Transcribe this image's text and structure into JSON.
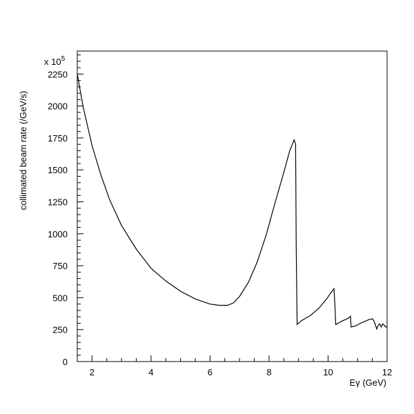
{
  "chart_data": {
    "type": "line",
    "title": "",
    "xlabel": "Eγ (GeV)",
    "ylabel": "collimated beam rate (/GeV/s)",
    "y_multiplier_label": "x 10",
    "y_multiplier_exponent": "5",
    "xlim": [
      1.5,
      12
    ],
    "ylim": [
      0,
      2430
    ],
    "x_ticks": [
      2,
      4,
      6,
      8,
      10,
      12
    ],
    "y_ticks": [
      0,
      250,
      500,
      750,
      1000,
      1250,
      1500,
      1750,
      2000,
      2250
    ],
    "x_tick_labels": [
      "2",
      "4",
      "6",
      "8",
      "10",
      "12"
    ],
    "y_tick_labels": [
      "0",
      "250",
      "500",
      "750",
      "1000",
      "1250",
      "1500",
      "1750",
      "2000",
      "2250"
    ],
    "grid": false,
    "line_color": "#000000",
    "series": [
      {
        "x": [
          1.5,
          1.7,
          2.0,
          2.3,
          2.6,
          3.0,
          3.5,
          4.0,
          4.5,
          5.0,
          5.5,
          6.0,
          6.3,
          6.6,
          6.8,
          7.0,
          7.3,
          7.6,
          7.9,
          8.2,
          8.5,
          8.7,
          8.85,
          8.9,
          8.92,
          8.95,
          9.1,
          9.4,
          9.7,
          9.95,
          10.1,
          10.2,
          10.23,
          10.26,
          10.5,
          10.7,
          10.76,
          10.78,
          10.95,
          11.1,
          11.25,
          11.4,
          11.5,
          11.55,
          11.6,
          11.65,
          11.7,
          11.75,
          11.8,
          11.85,
          11.9,
          11.95,
          12.0
        ],
        "values": [
          2250,
          1990,
          1690,
          1460,
          1265,
          1065,
          880,
          730,
          630,
          550,
          490,
          450,
          440,
          440,
          460,
          510,
          620,
          780,
          990,
          1240,
          1480,
          1650,
          1735,
          1700,
          900,
          290,
          320,
          360,
          420,
          490,
          540,
          570,
          450,
          290,
          320,
          340,
          355,
          270,
          280,
          300,
          315,
          330,
          335,
          320,
          290,
          255,
          285,
          295,
          270,
          295,
          285,
          270,
          275
        ]
      }
    ]
  }
}
